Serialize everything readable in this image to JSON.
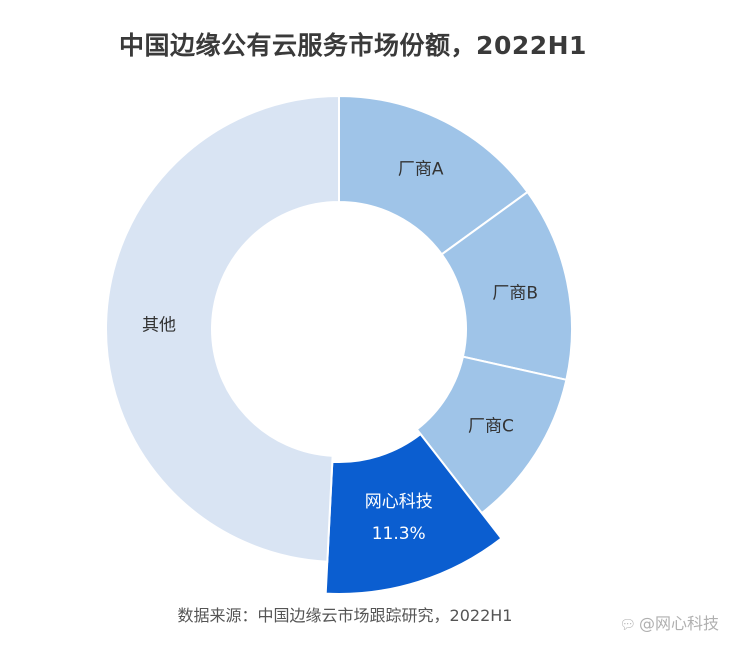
{
  "chart_data": {
    "type": "pie",
    "title": "中国边缘公有云服务市场份额，2022H1",
    "source": "数据来源：中国边缘云市场跟踪研究，2022H1",
    "slices": [
      {
        "label": "厂商A",
        "value": 15.0,
        "color": "#9fc4e8"
      },
      {
        "label": "厂商B",
        "value": 13.5,
        "color": "#9fc4e8"
      },
      {
        "label": "厂商C",
        "value": 11.0,
        "color": "#9fc4e8"
      },
      {
        "label": "网心科技",
        "value": 11.3,
        "value_label": "11.3%",
        "color": "#0b5ed0",
        "highlight": true
      },
      {
        "label": "其他",
        "value": 49.2,
        "color": "#d9e4f3"
      }
    ],
    "start_angle_deg": 0,
    "direction": "clockwise"
  },
  "watermark": {
    "icon": "chat-bubble-icon",
    "text": "@网心科技"
  }
}
